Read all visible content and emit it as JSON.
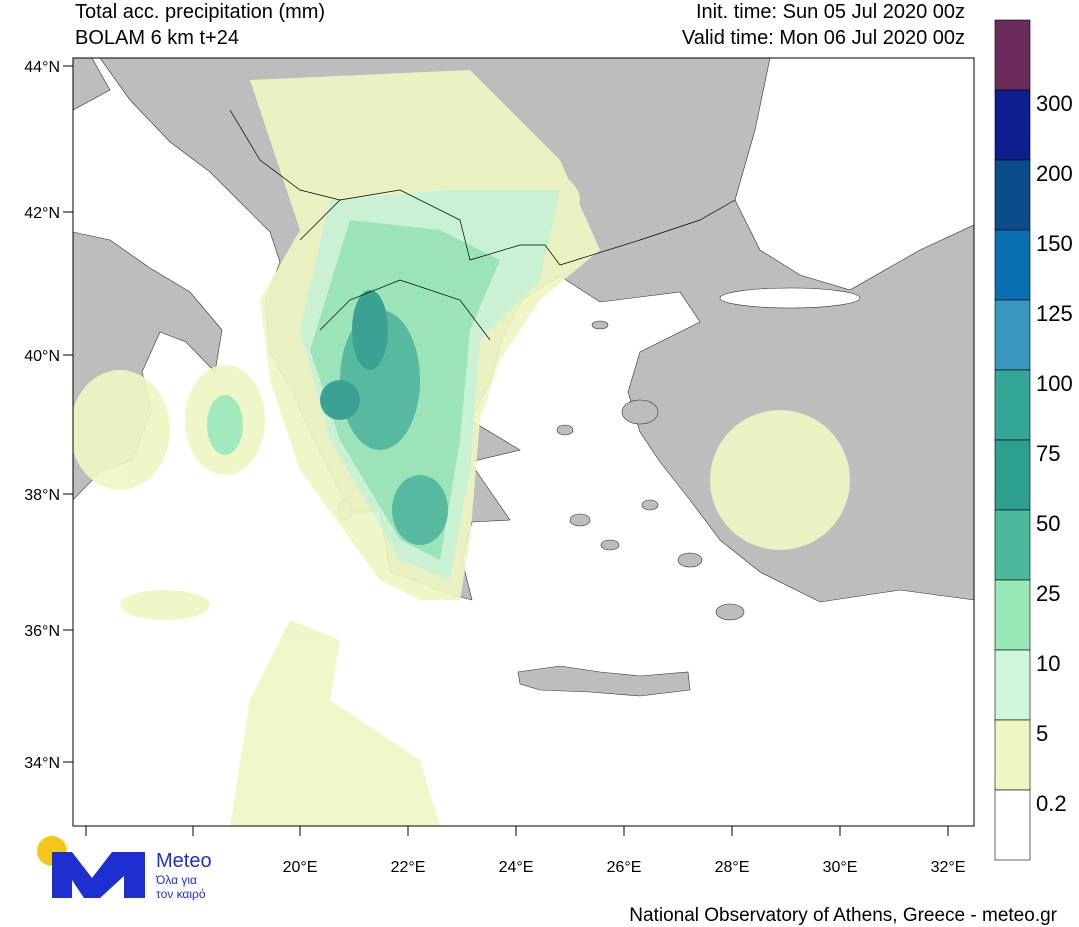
{
  "header": {
    "title": "Total acc. precipitation (mm)",
    "model": "BOLAM 6 km t+24",
    "init_time": "Init. time: Sun 05 Jul 2020 00z",
    "valid_time": "Valid time: Mon 06 Jul 2020 00z"
  },
  "map": {
    "lat_labels": [
      "44°N",
      "42°N",
      "40°N",
      "38°N",
      "36°N",
      "34°N"
    ],
    "lon_labels": [
      "20°E",
      "22°E",
      "24°E",
      "26°E",
      "28°E",
      "30°E",
      "32°E"
    ]
  },
  "colorbar": {
    "labels": [
      "300",
      "200",
      "150",
      "125",
      "100",
      "75",
      "50",
      "25",
      "10",
      "5",
      "0.2"
    ],
    "colors": [
      "#6b2c5c",
      "#0d1f8f",
      "#0b4d8a",
      "#0a6fb0",
      "#3797bf",
      "#33a897",
      "#2d9f8f",
      "#4cb99c",
      "#98e8b8",
      "#cdf7d8",
      "#eef7c4",
      "#ffffff"
    ]
  },
  "logo": {
    "name": "Meteo",
    "tagline_1": "Όλα για",
    "tagline_2": "τον καιρό"
  },
  "footer": "National Observatory of Athens, Greece - meteo.gr"
}
